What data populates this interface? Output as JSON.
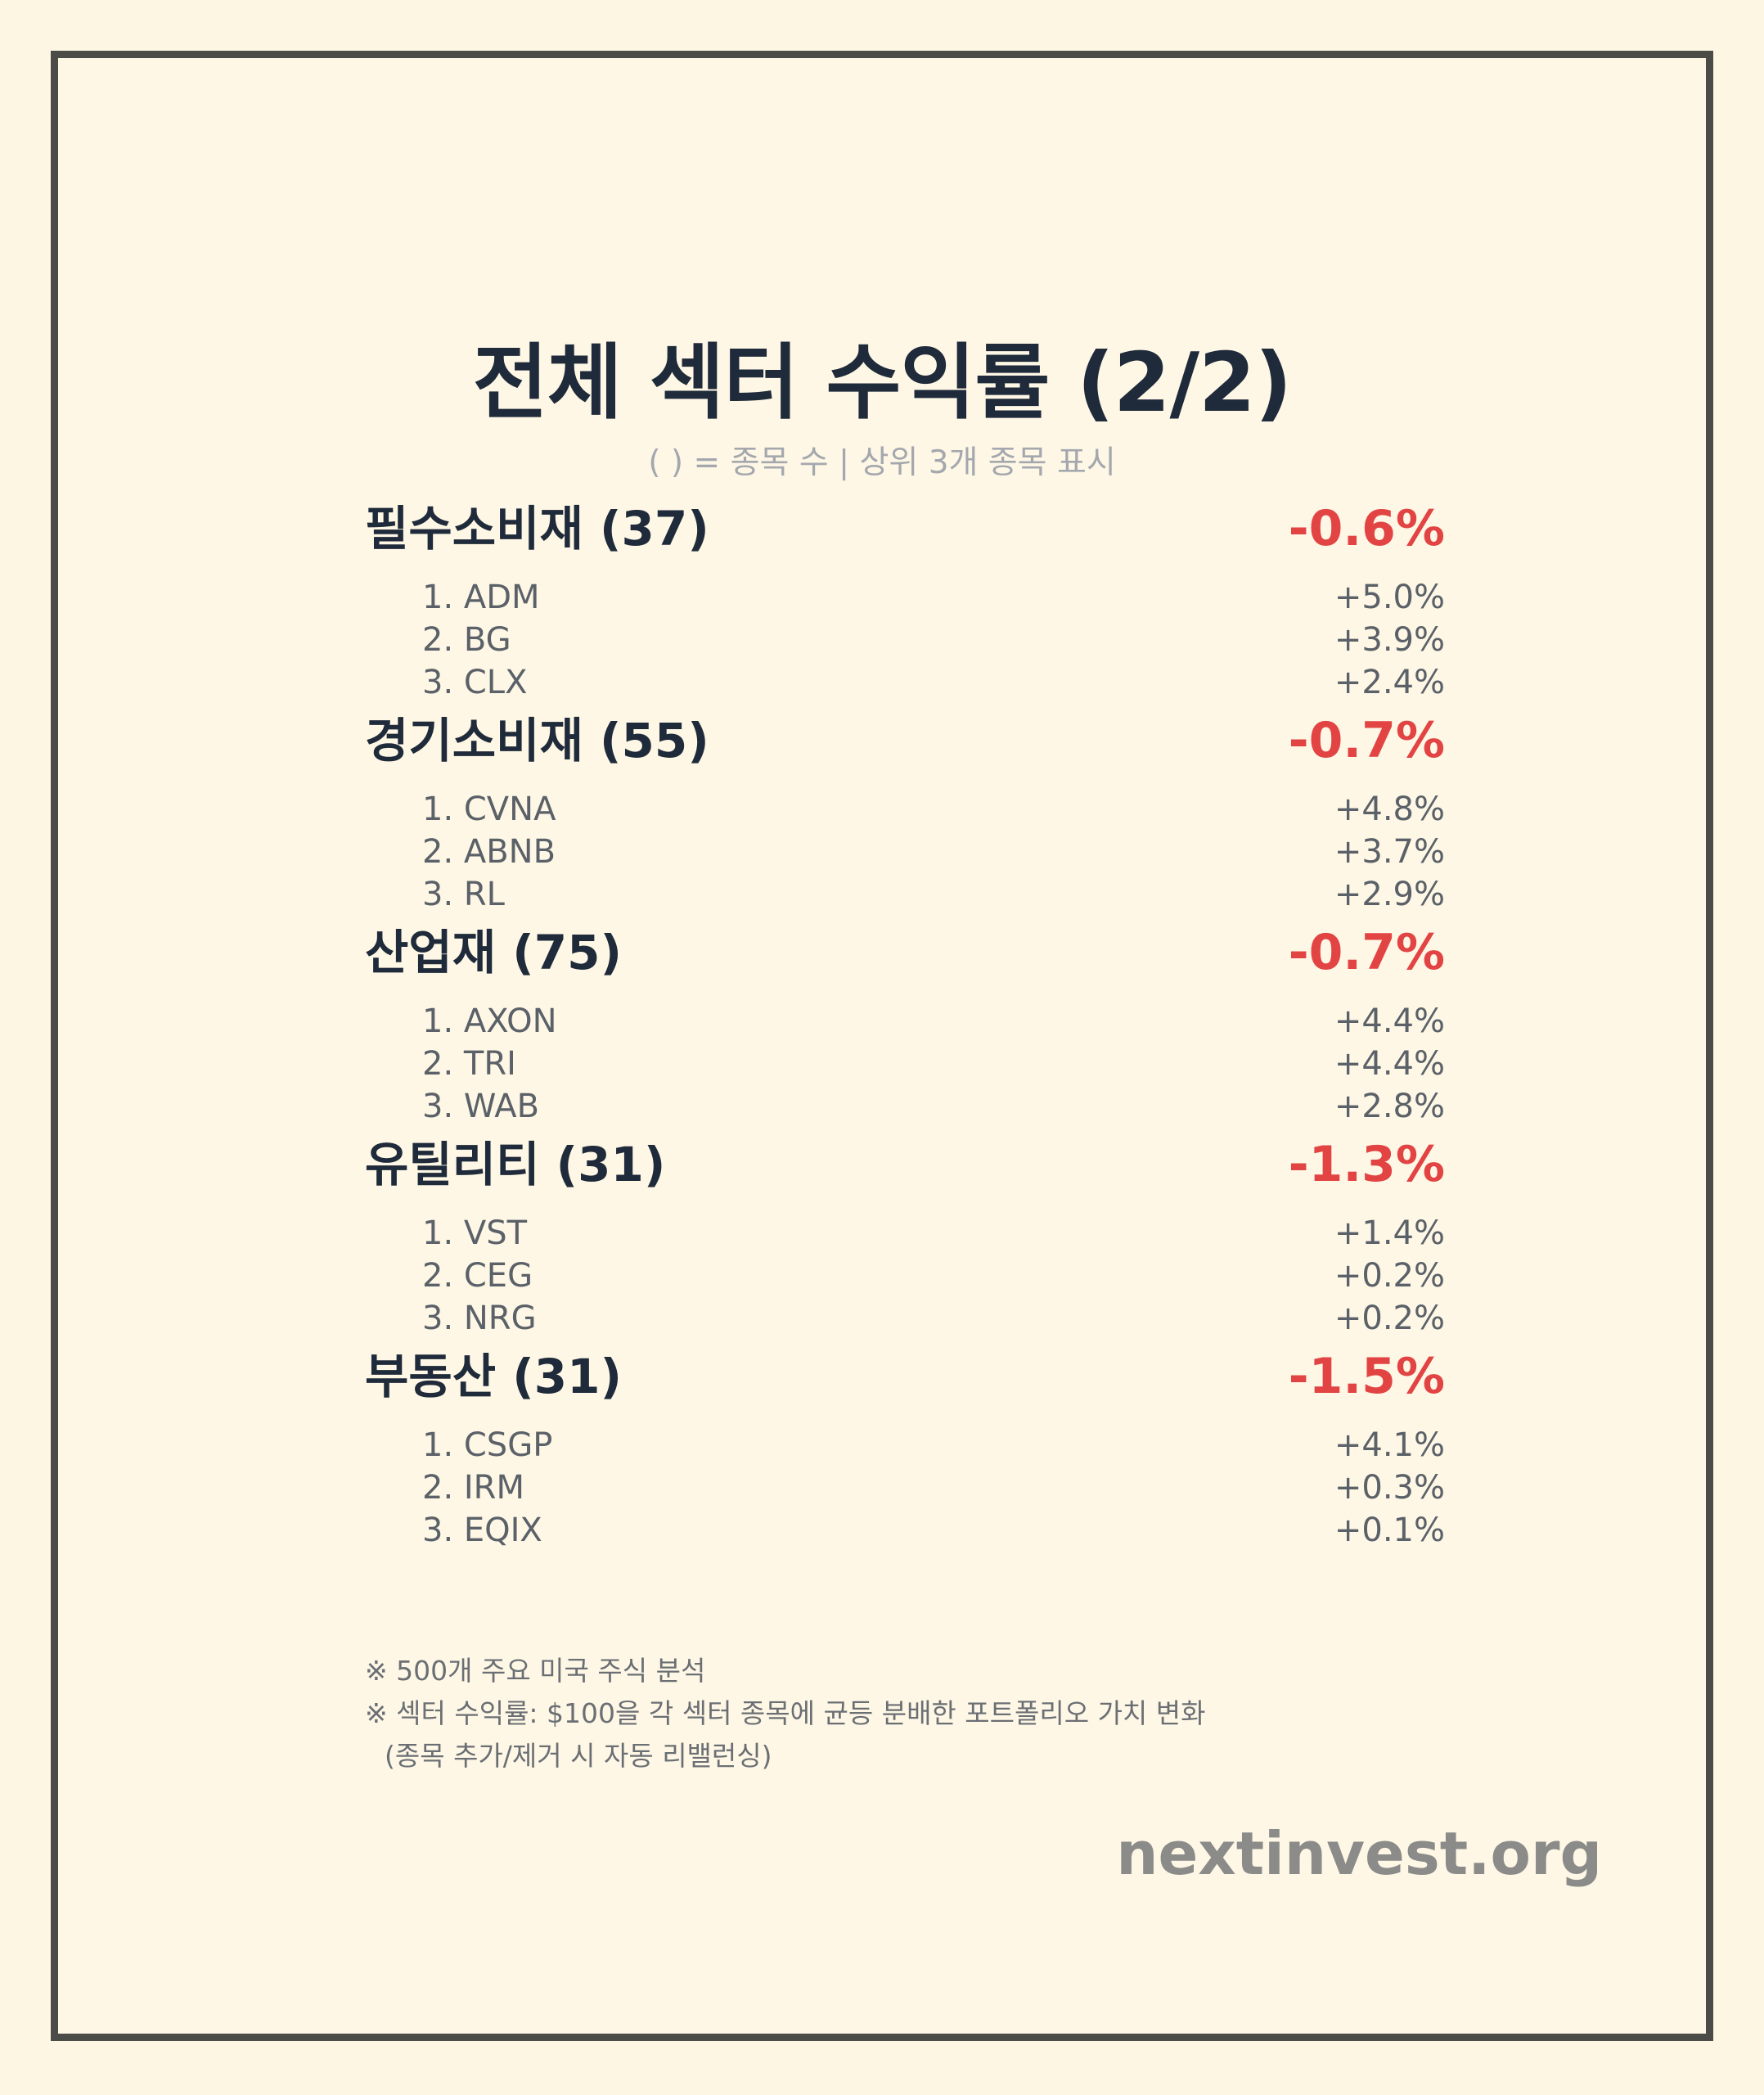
{
  "title": "전체 섹터 수익률 (2/2)",
  "subtitle": "( ) = 종목 수 | 상위 3개 종목 표시",
  "sectors": [
    {
      "name": "필수소비재 (37)",
      "return": "-0.6%",
      "stocks": [
        {
          "label": "1. ADM",
          "return": "+5.0%"
        },
        {
          "label": "2. BG",
          "return": "+3.9%"
        },
        {
          "label": "3. CLX",
          "return": "+2.4%"
        }
      ]
    },
    {
      "name": "경기소비재 (55)",
      "return": "-0.7%",
      "stocks": [
        {
          "label": "1. CVNA",
          "return": "+4.8%"
        },
        {
          "label": "2. ABNB",
          "return": "+3.7%"
        },
        {
          "label": "3. RL",
          "return": "+2.9%"
        }
      ]
    },
    {
      "name": "산업재 (75)",
      "return": "-0.7%",
      "stocks": [
        {
          "label": "1. AXON",
          "return": "+4.4%"
        },
        {
          "label": "2. TRI",
          "return": "+4.4%"
        },
        {
          "label": "3. WAB",
          "return": "+2.8%"
        }
      ]
    },
    {
      "name": "유틸리티 (31)",
      "return": "-1.3%",
      "stocks": [
        {
          "label": "1. VST",
          "return": "+1.4%"
        },
        {
          "label": "2. CEG",
          "return": "+0.2%"
        },
        {
          "label": "3. NRG",
          "return": "+0.2%"
        }
      ]
    },
    {
      "name": "부동산 (31)",
      "return": "-1.5%",
      "stocks": [
        {
          "label": "1. CSGP",
          "return": "+4.1%"
        },
        {
          "label": "2. IRM",
          "return": "+0.3%"
        },
        {
          "label": "3. EQIX",
          "return": "+0.1%"
        }
      ]
    }
  ],
  "notes": [
    "※ 500개 주요 미국 주식 분석",
    "※ 섹터 수익률: $100을 각 섹터 종목에 균등 분배한 포트폴리오 가치 변화",
    "(종목 추가/제거 시 자동 리밸런싱)"
  ],
  "brand": "nextinvest.org",
  "colors": {
    "background": "#fef7e5",
    "border": "#4b4b48",
    "text": "#1f2a3a",
    "negative": "#e24444",
    "muted": "#5b6168",
    "brand": "#8b8b89"
  }
}
